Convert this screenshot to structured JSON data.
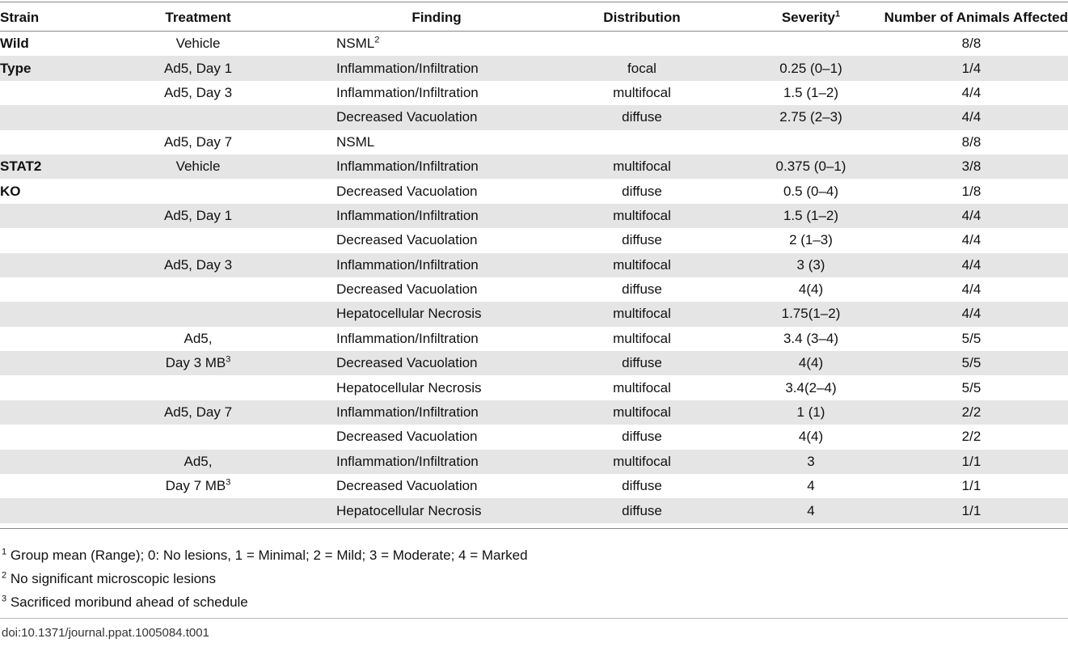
{
  "table": {
    "headers": {
      "strain": "Strain",
      "treatment": "Treatment",
      "finding": "Finding",
      "distribution": "Distribution",
      "severity": "Severity",
      "severity_sup": "1",
      "animals": "Number of Animals Affected"
    },
    "rows": [
      {
        "strain": "Wild",
        "treatment": "Vehicle",
        "treatment_sup": "",
        "finding": "NSML",
        "finding_sup": "2",
        "distribution": "",
        "severity": "",
        "animals": "8/8"
      },
      {
        "strain": "Type",
        "treatment": "Ad5, Day 1",
        "treatment_sup": "",
        "finding": "Inflammation/Infiltration",
        "finding_sup": "",
        "distribution": "focal",
        "severity": "0.25 (0–1)",
        "animals": "1/4"
      },
      {
        "strain": "",
        "treatment": "Ad5, Day 3",
        "treatment_sup": "",
        "finding": "Inflammation/Infiltration",
        "finding_sup": "",
        "distribution": "multifocal",
        "severity": "1.5 (1–2)",
        "animals": "4/4"
      },
      {
        "strain": "",
        "treatment": "",
        "treatment_sup": "",
        "finding": "Decreased Vacuolation",
        "finding_sup": "",
        "distribution": "diffuse",
        "severity": "2.75 (2–3)",
        "animals": "4/4"
      },
      {
        "strain": "",
        "treatment": "Ad5, Day 7",
        "treatment_sup": "",
        "finding": "NSML",
        "finding_sup": "",
        "distribution": "",
        "severity": "",
        "animals": "8/8"
      },
      {
        "strain": "STAT2",
        "treatment": "Vehicle",
        "treatment_sup": "",
        "finding": "Inflammation/Infiltration",
        "finding_sup": "",
        "distribution": "multifocal",
        "severity": "0.375 (0–1)",
        "animals": "3/8"
      },
      {
        "strain": "KO",
        "treatment": "",
        "treatment_sup": "",
        "finding": "Decreased Vacuolation",
        "finding_sup": "",
        "distribution": "diffuse",
        "severity": "0.5 (0–4)",
        "animals": "1/8"
      },
      {
        "strain": "",
        "treatment": "Ad5, Day 1",
        "treatment_sup": "",
        "finding": "Inflammation/Infiltration",
        "finding_sup": "",
        "distribution": "multifocal",
        "severity": "1.5 (1–2)",
        "animals": "4/4"
      },
      {
        "strain": "",
        "treatment": "",
        "treatment_sup": "",
        "finding": "Decreased Vacuolation",
        "finding_sup": "",
        "distribution": "diffuse",
        "severity": "2 (1–3)",
        "animals": "4/4"
      },
      {
        "strain": "",
        "treatment": "Ad5, Day 3",
        "treatment_sup": "",
        "finding": "Inflammation/Infiltration",
        "finding_sup": "",
        "distribution": "multifocal",
        "severity": "3 (3)",
        "animals": "4/4"
      },
      {
        "strain": "",
        "treatment": "",
        "treatment_sup": "",
        "finding": "Decreased Vacuolation",
        "finding_sup": "",
        "distribution": "diffuse",
        "severity": "4(4)",
        "animals": "4/4"
      },
      {
        "strain": "",
        "treatment": "",
        "treatment_sup": "",
        "finding": "Hepatocellular Necrosis",
        "finding_sup": "",
        "distribution": "multifocal",
        "severity": "1.75(1–2)",
        "animals": "4/4"
      },
      {
        "strain": "",
        "treatment": "Ad5,",
        "treatment_sup": "",
        "finding": "Inflammation/Infiltration",
        "finding_sup": "",
        "distribution": "multifocal",
        "severity": "3.4 (3–4)",
        "animals": "5/5"
      },
      {
        "strain": "",
        "treatment": "Day 3 MB",
        "treatment_sup": "3",
        "finding": "Decreased Vacuolation",
        "finding_sup": "",
        "distribution": "diffuse",
        "severity": "4(4)",
        "animals": "5/5"
      },
      {
        "strain": "",
        "treatment": "",
        "treatment_sup": "",
        "finding": "Hepatocellular Necrosis",
        "finding_sup": "",
        "distribution": "multifocal",
        "severity": "3.4(2–4)",
        "animals": "5/5"
      },
      {
        "strain": "",
        "treatment": "Ad5, Day 7",
        "treatment_sup": "",
        "finding": "Inflammation/Infiltration",
        "finding_sup": "",
        "distribution": "multifocal",
        "severity": "1 (1)",
        "animals": "2/2"
      },
      {
        "strain": "",
        "treatment": "",
        "treatment_sup": "",
        "finding": "Decreased Vacuolation",
        "finding_sup": "",
        "distribution": "diffuse",
        "severity": "4(4)",
        "animals": "2/2"
      },
      {
        "strain": "",
        "treatment": "Ad5,",
        "treatment_sup": "",
        "finding": "Inflammation/Infiltration",
        "finding_sup": "",
        "distribution": "multifocal",
        "severity": "3",
        "animals": "1/1"
      },
      {
        "strain": "",
        "treatment": "Day 7 MB",
        "treatment_sup": "3",
        "finding": "Decreased Vacuolation",
        "finding_sup": "",
        "distribution": "diffuse",
        "severity": "4",
        "animals": "1/1"
      },
      {
        "strain": "",
        "treatment": "",
        "treatment_sup": "",
        "finding": "Hepatocellular Necrosis",
        "finding_sup": "",
        "distribution": "diffuse",
        "severity": "4",
        "animals": "1/1"
      }
    ]
  },
  "footnotes": [
    {
      "mark": "1",
      "text": " Group mean (Range); 0: No lesions, 1 = Minimal; 2 = Mild; 3 = Moderate; 4 = Marked"
    },
    {
      "mark": "2",
      "text": " No significant microscopic lesions"
    },
    {
      "mark": "3",
      "text": " Sacrificed moribund ahead of schedule"
    }
  ],
  "doi": "doi:10.1371/journal.ppat.1005084.t001"
}
